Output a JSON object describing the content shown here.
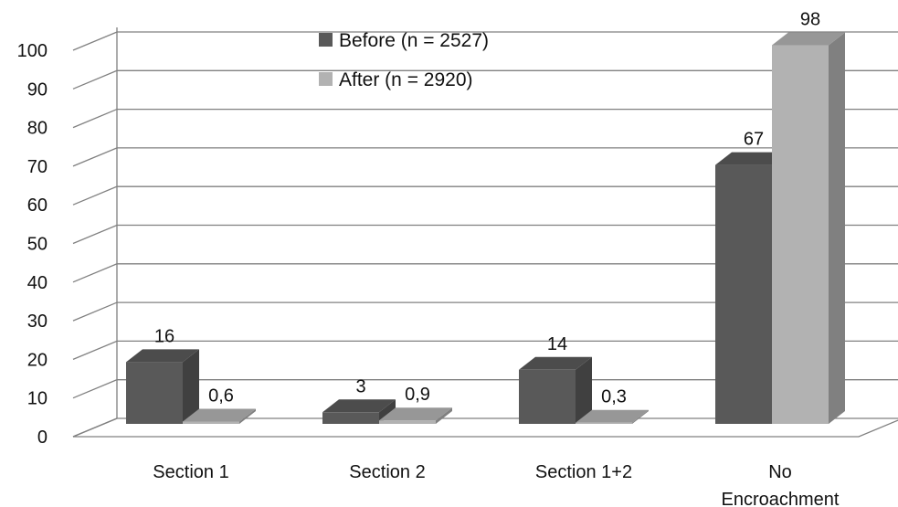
{
  "chart_data": {
    "type": "bar",
    "categories": [
      "Section 1",
      "Section 2",
      "Section 1+2",
      "No Encroachment"
    ],
    "series": [
      {
        "name": "Before (n = 2527)",
        "values": [
          16,
          3,
          14,
          67
        ],
        "labels": [
          "16",
          "3",
          "14",
          "67"
        ],
        "color": "#595959"
      },
      {
        "name": "After (n = 2920)",
        "values": [
          0.6,
          0.9,
          0.3,
          98
        ],
        "labels": [
          "0,6",
          "0,9",
          "0,3",
          "98"
        ],
        "color": "#b2b2b2"
      }
    ],
    "yticks": [
      "0",
      "10",
      "20",
      "30",
      "40",
      "50",
      "60",
      "70",
      "80",
      "90",
      "100"
    ],
    "ylim": [
      0,
      100
    ],
    "grid": true,
    "legend_position": "top-center",
    "title": "",
    "xlabel": "",
    "ylabel": ""
  }
}
